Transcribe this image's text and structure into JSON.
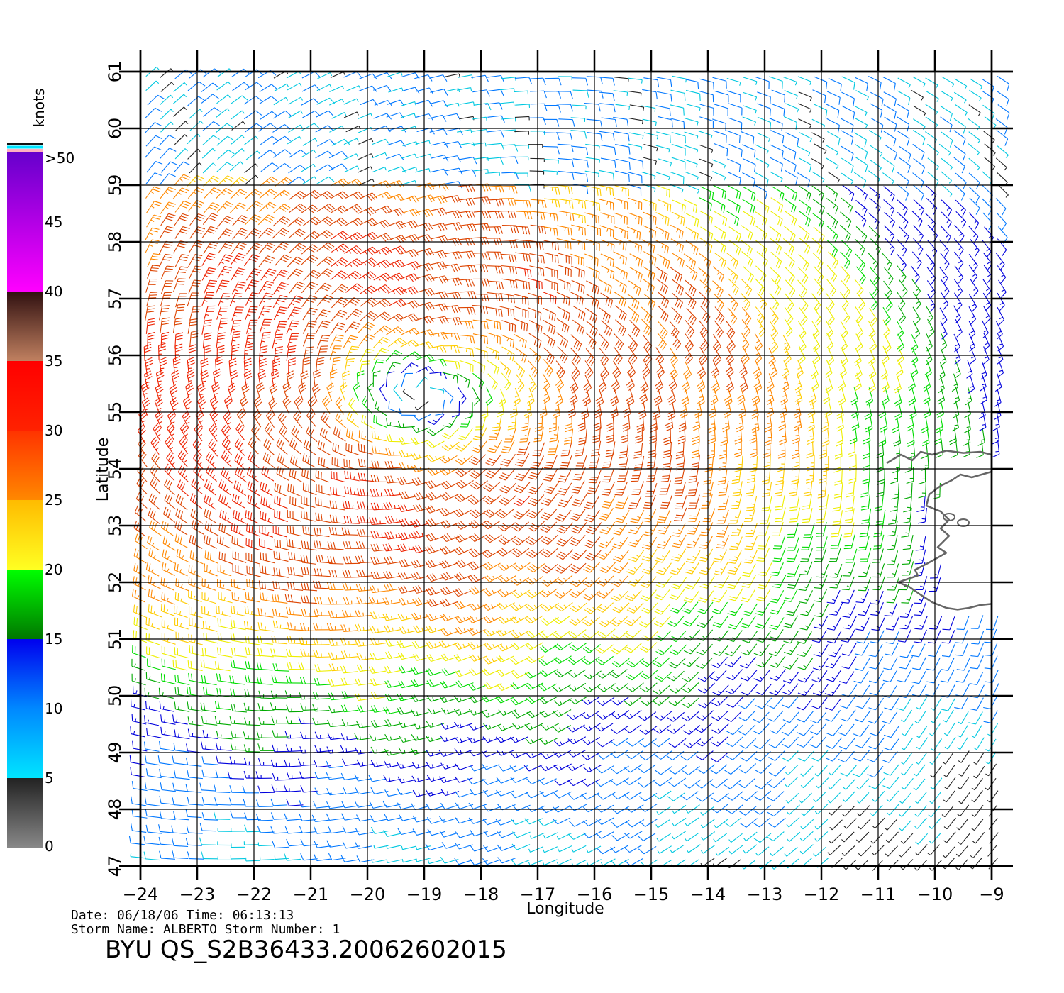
{
  "chart_data": {
    "type": "wind-barb-map",
    "xlabel": "Longitude",
    "ylabel": "Latitude",
    "xlim": [
      -24,
      -9
    ],
    "ylim": [
      47,
      61
    ],
    "x_ticks": [
      "−24",
      "−23",
      "−22",
      "−21",
      "−20",
      "−19",
      "−18",
      "−17",
      "−16",
      "−15",
      "−14",
      "−13",
      "−12",
      "−11",
      "−10",
      "−9"
    ],
    "y_ticks": [
      "47",
      "48",
      "49",
      "50",
      "51",
      "52",
      "53",
      "54",
      "55",
      "56",
      "57",
      "58",
      "59",
      "60",
      "61"
    ],
    "grid": true,
    "colorbar": {
      "units": "knots",
      "labels": [
        "0",
        "5",
        "10",
        "15",
        "20",
        "25",
        "30",
        "35",
        "40",
        "45",
        ">50"
      ],
      "bins": [
        {
          "from": 0,
          "to": 5,
          "colors": [
            "#888888",
            "#222222"
          ]
        },
        {
          "from": 5,
          "to": 10,
          "colors": [
            "#00e5ff",
            "#0088ff"
          ]
        },
        {
          "from": 10,
          "to": 15,
          "colors": [
            "#0088ff",
            "#0000ee"
          ]
        },
        {
          "from": 15,
          "to": 20,
          "colors": [
            "#007700",
            "#00ff00"
          ]
        },
        {
          "from": 20,
          "to": 25,
          "colors": [
            "#ffff22",
            "#ffbb00"
          ]
        },
        {
          "from": 25,
          "to": 30,
          "colors": [
            "#ff8800",
            "#ff3300"
          ]
        },
        {
          "from": 30,
          "to": 35,
          "colors": [
            "#ff2200",
            "#ff0000"
          ]
        },
        {
          "from": 35,
          "to": 40,
          "colors": [
            "#c08060",
            "#301010"
          ]
        },
        {
          "from": 40,
          "to": 50,
          "colors": [
            "#ff00ff",
            "#6600cc"
          ]
        }
      ],
      "top_swatches": [
        "#111111",
        "#00e5ff",
        "#ffb0c0"
      ]
    },
    "storm_center": {
      "lon": -19.0,
      "lat": 55.3
    },
    "coastline": [
      [
        -10.85,
        54.1
      ],
      [
        -10.6,
        54.25
      ],
      [
        -10.4,
        54.15
      ],
      [
        -10.25,
        54.3
      ],
      [
        -10.05,
        54.25
      ],
      [
        -9.8,
        54.32
      ],
      [
        -9.5,
        54.28
      ],
      [
        -9.2,
        54.3
      ],
      [
        -9.0,
        54.25
      ],
      [
        -9.0,
        53.95
      ],
      [
        -9.35,
        53.85
      ],
      [
        -9.55,
        53.9
      ],
      [
        -9.7,
        53.8
      ],
      [
        -9.9,
        53.7
      ],
      [
        -10.1,
        53.55
      ],
      [
        -10.15,
        53.35
      ],
      [
        -9.9,
        53.25
      ],
      [
        -9.75,
        53.1
      ],
      [
        -9.9,
        52.95
      ],
      [
        -9.75,
        52.82
      ],
      [
        -9.95,
        52.62
      ],
      [
        -9.8,
        52.52
      ],
      [
        -10.1,
        52.35
      ],
      [
        -10.35,
        52.22
      ],
      [
        -10.3,
        52.12
      ],
      [
        -10.65,
        52.0
      ],
      [
        -10.45,
        51.92
      ],
      [
        -10.25,
        51.78
      ],
      [
        -10.05,
        51.65
      ],
      [
        -9.8,
        51.55
      ],
      [
        -9.6,
        51.52
      ],
      [
        -9.4,
        51.55
      ],
      [
        -9.2,
        51.6
      ],
      [
        -9.0,
        51.62
      ]
    ],
    "coast_islands": [
      {
        "lon": -9.75,
        "lat": 53.15
      },
      {
        "lon": -9.5,
        "lat": 53.05
      }
    ]
  },
  "footer": {
    "date_line": "Date: 06/18/06   Time: 06:13:13",
    "storm_line": "Storm Name: ALBERTO   Storm Number: 1",
    "file_id": "BYU  QS_S2B36433.20062602015"
  }
}
